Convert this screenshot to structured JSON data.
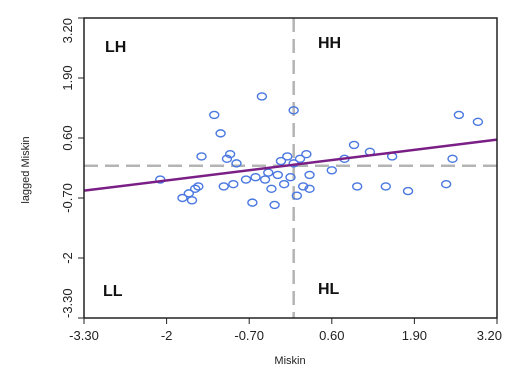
{
  "chart_data": {
    "type": "scatter",
    "xlabel": "Miskin",
    "ylabel": "lagged Miskin",
    "xlim": [
      -3.3,
      3.2
    ],
    "ylim": [
      -3.3,
      3.2
    ],
    "x_ticks": [
      -3.3,
      -2,
      -0.7,
      0.6,
      1.9,
      3.2
    ],
    "x_tick_labels": [
      "-3.30",
      "-2",
      "-0.70",
      "0.60",
      "1.90",
      "3.20"
    ],
    "y_ticks": [
      -3.3,
      -2,
      -0.7,
      0.6,
      1.9,
      3.2
    ],
    "y_tick_labels": [
      "-3.30",
      "-2",
      "-0.70",
      "0.60",
      "1.90",
      "3.20"
    ],
    "reference_lines": {
      "x": 0,
      "y": 0
    },
    "regression_line": {
      "slope": 0.17,
      "intercept": 0.02
    },
    "quadrant_labels": {
      "top_left": "LH",
      "top_right": "HH",
      "bottom_left": "LL",
      "bottom_right": "HL"
    },
    "points": [
      {
        "x": -2.1,
        "y": -0.3
      },
      {
        "x": -1.75,
        "y": -0.7
      },
      {
        "x": -1.65,
        "y": -0.6
      },
      {
        "x": -1.6,
        "y": -0.75
      },
      {
        "x": -1.55,
        "y": -0.5
      },
      {
        "x": -1.5,
        "y": -0.45
      },
      {
        "x": -1.45,
        "y": 0.2
      },
      {
        "x": -1.25,
        "y": 1.1
      },
      {
        "x": -1.15,
        "y": 0.7
      },
      {
        "x": -1.1,
        "y": -0.45
      },
      {
        "x": -1.05,
        "y": 0.15
      },
      {
        "x": -1.0,
        "y": 0.25
      },
      {
        "x": -0.95,
        "y": -0.4
      },
      {
        "x": -0.9,
        "y": 0.05
      },
      {
        "x": -0.75,
        "y": -0.3
      },
      {
        "x": -0.65,
        "y": -0.8
      },
      {
        "x": -0.6,
        "y": -0.25
      },
      {
        "x": -0.5,
        "y": 1.5
      },
      {
        "x": -0.45,
        "y": -0.3
      },
      {
        "x": -0.4,
        "y": -0.15
      },
      {
        "x": -0.35,
        "y": -0.5
      },
      {
        "x": -0.3,
        "y": -0.85
      },
      {
        "x": -0.25,
        "y": -0.2
      },
      {
        "x": -0.2,
        "y": 0.1
      },
      {
        "x": -0.15,
        "y": -0.4
      },
      {
        "x": -0.1,
        "y": 0.2
      },
      {
        "x": -0.05,
        "y": -0.25
      },
      {
        "x": 0.0,
        "y": 1.2
      },
      {
        "x": 0.0,
        "y": 0.05
      },
      {
        "x": 0.05,
        "y": -0.65
      },
      {
        "x": 0.1,
        "y": 0.15
      },
      {
        "x": 0.15,
        "y": -0.45
      },
      {
        "x": 0.2,
        "y": 0.25
      },
      {
        "x": 0.25,
        "y": -0.5
      },
      {
        "x": 0.25,
        "y": -0.2
      },
      {
        "x": 0.6,
        "y": -0.1
      },
      {
        "x": 0.8,
        "y": 0.15
      },
      {
        "x": 0.95,
        "y": 0.45
      },
      {
        "x": 1.0,
        "y": -0.45
      },
      {
        "x": 1.2,
        "y": 0.3
      },
      {
        "x": 1.45,
        "y": -0.45
      },
      {
        "x": 1.55,
        "y": 0.2
      },
      {
        "x": 1.8,
        "y": -0.55
      },
      {
        "x": 2.4,
        "y": -0.4
      },
      {
        "x": 2.5,
        "y": 0.15
      },
      {
        "x": 2.6,
        "y": 1.1
      },
      {
        "x": 2.9,
        "y": 0.95
      }
    ],
    "colors": {
      "points": "#4a78e0",
      "regression": "#7a1f86",
      "reference": "#b4b4b4",
      "frame": "#222222"
    }
  }
}
